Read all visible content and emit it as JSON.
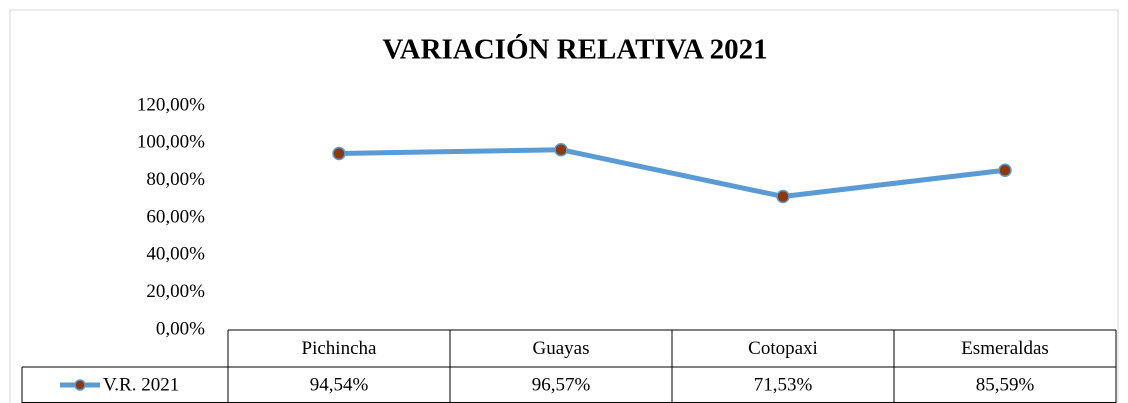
{
  "chart_data": {
    "type": "line",
    "title": "VARIACIÓN RELATIVA 2021",
    "categories": [
      "Pichincha",
      "Guayas",
      "Cotopaxi",
      "Esmeraldas"
    ],
    "series": [
      {
        "name": "V.R. 2021",
        "color": "#5b9bd5",
        "marker_color": "#8b3a0e",
        "values": [
          94.54,
          96.57,
          71.53,
          85.59
        ],
        "value_labels": [
          "94,54%",
          "96,57%",
          "71,53%",
          "85,59%"
        ]
      }
    ],
    "ylim": [
      0,
      120
    ],
    "yticks": [
      {
        "value": 0,
        "label": "0,00%"
      },
      {
        "value": 20,
        "label": "20,00%"
      },
      {
        "value": 40,
        "label": "40,00%"
      },
      {
        "value": 60,
        "label": "60,00%"
      },
      {
        "value": 80,
        "label": "80,00%"
      },
      {
        "value": 100,
        "label": "100,00%"
      },
      {
        "value": 120,
        "label": "120,00%"
      }
    ],
    "grid": false,
    "data_table": true
  }
}
